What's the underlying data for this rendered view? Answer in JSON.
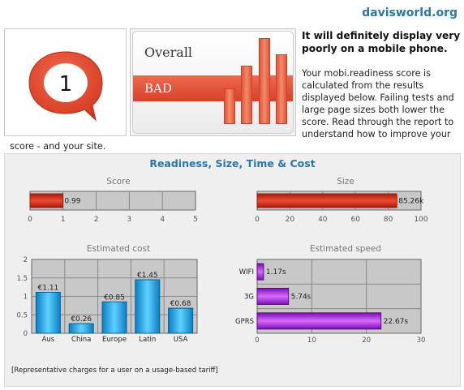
{
  "site": {
    "name": "davisworld.org"
  },
  "score_badge": {
    "value": "1"
  },
  "overall": {
    "label": "Overall",
    "rating": "BAD"
  },
  "summary": {
    "title": "It will definitely display very poorly on a mobile phone.",
    "text": "Your mobi.readiness score is calculated from the results displayed below. Failing tests and large page sizes both lower the score. Read through the report to understand how to improve your",
    "tail": "score - and your site."
  },
  "panel": {
    "title": "Readiness, Size, Time & Cost",
    "footnote": "[Representative charges for a user on a usage-based tariff]"
  },
  "colors": {
    "accent": "#2a77a8",
    "bad_red": "#d8412a",
    "cost_blue": "#1aa3e0",
    "speed_purple": "#a020d8"
  },
  "chart_data": [
    {
      "type": "bar",
      "orientation": "horizontal",
      "title": "Score",
      "categories": [
        ""
      ],
      "values": [
        0.99
      ],
      "value_labels": [
        "0.99"
      ],
      "xlim": [
        0,
        5
      ],
      "ticks": [
        "0",
        "1",
        "2",
        "3",
        "4",
        "5"
      ],
      "grid": true
    },
    {
      "type": "bar",
      "orientation": "horizontal",
      "title": "Size",
      "categories": [
        ""
      ],
      "values": [
        85.26
      ],
      "value_labels": [
        "85.26k"
      ],
      "xlim": [
        0,
        100
      ],
      "ticks": [
        "0",
        "20",
        "40",
        "60",
        "80",
        "100"
      ],
      "grid": true
    },
    {
      "type": "bar",
      "orientation": "vertical",
      "title": "Estimated cost",
      "categories": [
        "Aus",
        "China",
        "Europe",
        "Latin",
        "USA"
      ],
      "values": [
        1.11,
        0.26,
        0.85,
        1.45,
        0.68
      ],
      "value_labels": [
        "€1.11",
        "€0.26",
        "€0.85",
        "€1.45",
        "€0.68"
      ],
      "ylim": [
        0,
        2
      ],
      "ticks": [
        "0",
        "0.5",
        "1",
        "1.5",
        "2"
      ],
      "grid": true
    },
    {
      "type": "bar",
      "orientation": "horizontal",
      "title": "Estimated speed",
      "categories": [
        "WIFI",
        "3G",
        "GPRS"
      ],
      "values": [
        1.17,
        5.74,
        22.67
      ],
      "value_labels": [
        "1.17s",
        "5.74s",
        "22.67s"
      ],
      "xlim": [
        0,
        30
      ],
      "ticks": [
        "0",
        "10",
        "20",
        "30"
      ],
      "grid": true
    }
  ]
}
